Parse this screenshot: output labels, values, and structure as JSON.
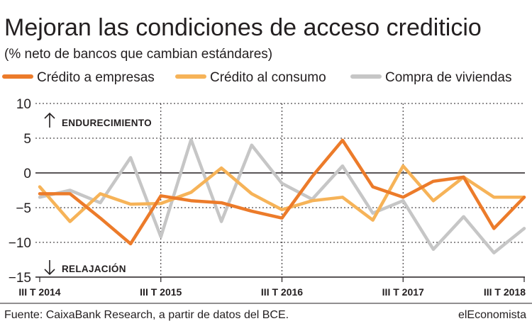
{
  "chart_data": {
    "type": "line",
    "title": "Mejoran las condiciones de acceso crediticio",
    "subtitle": "(% neto de bancos que cambian estándares)",
    "ylim": [
      -15,
      10
    ],
    "yticks": [
      10,
      5,
      0,
      -5,
      -10,
      -15
    ],
    "ytick_labels": [
      "10",
      "5",
      "0",
      "−5",
      "−10",
      "−15"
    ],
    "x_tick_labels": [
      "III T 2014",
      "III T 2015",
      "III T 2016",
      "III T 2017",
      "III T 2018"
    ],
    "x_tick_indices": [
      0,
      4,
      8,
      12,
      16
    ],
    "series": [
      {
        "name": "Crédito a empresas",
        "color": "#ec7b2a",
        "values": [
          -3.0,
          -3.0,
          -6.5,
          -10.2,
          -3.3,
          -4.0,
          -4.3,
          -5.5,
          -6.5,
          -0.5,
          4.7,
          -2.0,
          -3.5,
          -1.2,
          -0.6,
          -8.0,
          -3.5
        ]
      },
      {
        "name": "Crédito al consumo",
        "color": "#f6b358",
        "values": [
          -2.0,
          -7.0,
          -3.0,
          -4.5,
          -4.4,
          -2.8,
          0.7,
          -3.0,
          -5.3,
          -4.0,
          -3.5,
          -6.8,
          1.0,
          -4.0,
          -0.6,
          -3.5,
          -3.5
        ]
      },
      {
        "name": "Compra de viviendas",
        "color": "#c6c6c6",
        "values": [
          -3.5,
          -2.5,
          -4.3,
          2.2,
          -9.2,
          4.8,
          -7.0,
          4.0,
          -1.5,
          -3.8,
          1.0,
          -5.8,
          -4.0,
          -11.0,
          -6.3,
          -11.5,
          -8.0
        ]
      }
    ],
    "annotations": [
      "ENDURECIMIENTO",
      "RELAJACIÓN"
    ],
    "source": "Fuente: CaixaBank Research, a partir de datos del BCE.",
    "brand": "elEconomista"
  }
}
